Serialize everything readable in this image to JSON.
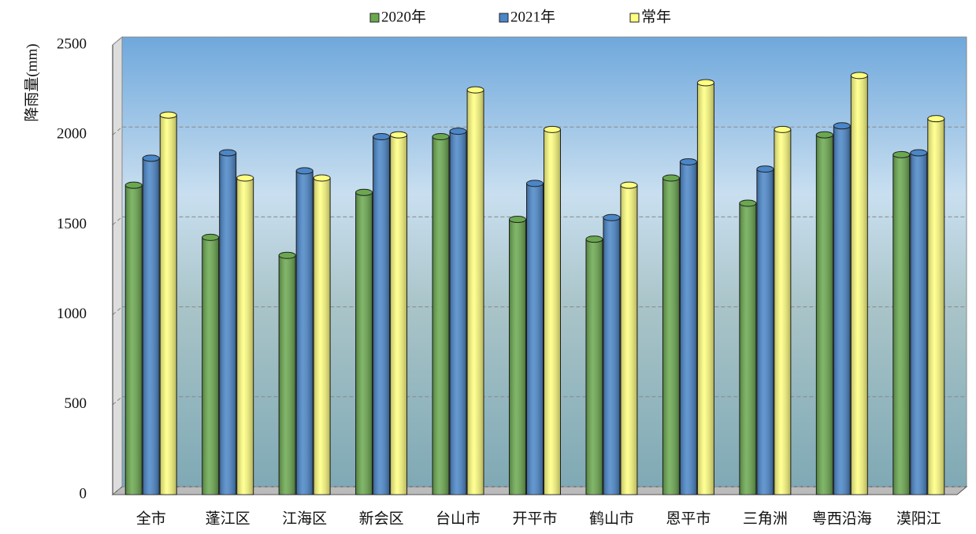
{
  "chart_data": {
    "type": "bar",
    "y_label": "降雨量(mm)",
    "categories": [
      "全市",
      "蓬江区",
      "江海区",
      "新会区",
      "台山市",
      "开平市",
      "鹤山市",
      "恩平市",
      "三角洲",
      "粤西沿海",
      "漠阳江"
    ],
    "series": [
      {
        "name": "2020年",
        "color": "#6aa84f",
        "values": [
          1720,
          1430,
          1330,
          1680,
          1990,
          1530,
          1420,
          1760,
          1620,
          2000,
          1890
        ]
      },
      {
        "name": "2021年",
        "color": "#4a86c8",
        "values": [
          1870,
          1900,
          1800,
          1990,
          2020,
          1730,
          1540,
          1850,
          1810,
          2050,
          1900
        ]
      },
      {
        "name": "常年",
        "color": "#ffff80",
        "values": [
          2110,
          1760,
          1760,
          2000,
          2250,
          2030,
          1720,
          2290,
          2030,
          2330,
          2090
        ]
      }
    ],
    "ylim": [
      0,
      2500
    ],
    "yticks": [
      0,
      500,
      1000,
      1500,
      2000,
      2500
    ],
    "grid": true
  }
}
